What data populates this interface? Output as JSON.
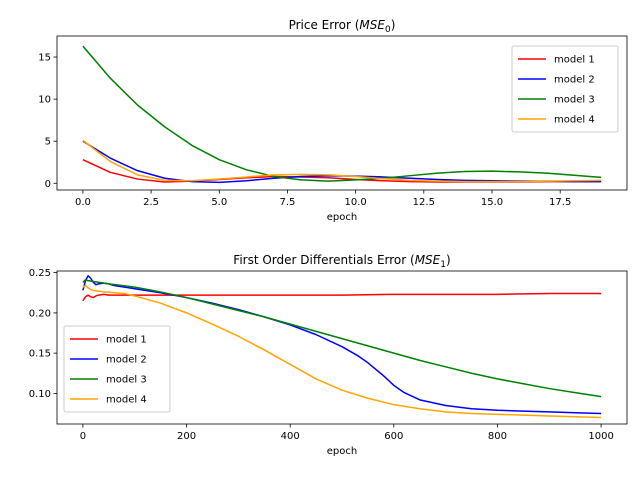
{
  "chart_data": [
    {
      "type": "line",
      "title": "Price Error (MSE0)",
      "title_base": "Price Error (",
      "title_sym": "MSE",
      "title_sub": "0",
      "title_end": ")",
      "xlabel": "epoch",
      "ylabel": "",
      "xlim": [
        -0.95,
        19.95
      ],
      "ylim": [
        -0.8,
        17.5
      ],
      "xticks": [
        0.0,
        2.5,
        5.0,
        7.5,
        10.0,
        12.5,
        15.0,
        17.5
      ],
      "xtick_labels": [
        "0.0",
        "2.5",
        "5.0",
        "7.5",
        "10.0",
        "12.5",
        "15.0",
        "17.5"
      ],
      "yticks": [
        0,
        5,
        10,
        15
      ],
      "ytick_labels": [
        "0",
        "5",
        "10",
        "15"
      ],
      "legend": "top-right",
      "grid": false,
      "series": [
        {
          "name": "model 1",
          "color": "#ff0000",
          "x": [
            0,
            1,
            2,
            3,
            4,
            5,
            6,
            7,
            8,
            9,
            10,
            11,
            12,
            13,
            14,
            15,
            16,
            17,
            18,
            19
          ],
          "y": [
            2.8,
            1.3,
            0.5,
            0.15,
            0.25,
            0.45,
            0.65,
            0.8,
            0.75,
            0.65,
            0.45,
            0.3,
            0.2,
            0.15,
            0.15,
            0.15,
            0.15,
            0.2,
            0.2,
            0.2
          ]
        },
        {
          "name": "model 2",
          "color": "#0000ff",
          "x": [
            0,
            1,
            2,
            3,
            4,
            5,
            6,
            7,
            8,
            9,
            10,
            11,
            12,
            13,
            14,
            15,
            16,
            17,
            18,
            19
          ],
          "y": [
            5.0,
            3.0,
            1.5,
            0.6,
            0.2,
            0.1,
            0.3,
            0.6,
            0.8,
            0.9,
            0.85,
            0.75,
            0.6,
            0.45,
            0.35,
            0.3,
            0.25,
            0.25,
            0.2,
            0.2
          ]
        },
        {
          "name": "model 3",
          "color": "#008000",
          "x": [
            0,
            1,
            2,
            3,
            4,
            5,
            6,
            7,
            8,
            9,
            10,
            11,
            12,
            13,
            14,
            15,
            16,
            17,
            18,
            19
          ],
          "y": [
            16.3,
            12.5,
            9.3,
            6.7,
            4.5,
            2.8,
            1.6,
            0.8,
            0.4,
            0.25,
            0.4,
            0.6,
            0.9,
            1.2,
            1.4,
            1.45,
            1.35,
            1.2,
            0.95,
            0.7
          ]
        },
        {
          "name": "model 4",
          "color": "#ffa500",
          "x": [
            0,
            1,
            2,
            3,
            4,
            5,
            6,
            7,
            8,
            9,
            10,
            11,
            12,
            13,
            14,
            15,
            16,
            17,
            18,
            19
          ],
          "y": [
            5.1,
            2.6,
            1.0,
            0.35,
            0.3,
            0.5,
            0.75,
            1.0,
            1.05,
            1.0,
            0.8,
            0.55,
            0.35,
            0.25,
            0.2,
            0.2,
            0.2,
            0.25,
            0.3,
            0.35
          ]
        }
      ]
    },
    {
      "type": "line",
      "title": "First Order Differentials Error (MSE1)",
      "title_base": "First Order Differentials Error (",
      "title_sym": "MSE",
      "title_sub": "1",
      "title_end": ")",
      "xlabel": "epoch",
      "ylabel": "",
      "xlim": [
        -50,
        1050
      ],
      "ylim": [
        0.062,
        0.252
      ],
      "xticks": [
        0,
        200,
        400,
        600,
        800,
        1000
      ],
      "xtick_labels": [
        "0",
        "200",
        "400",
        "600",
        "800",
        "1000"
      ],
      "yticks": [
        0.1,
        0.15,
        0.2,
        0.25
      ],
      "ytick_labels": [
        "0.10",
        "0.15",
        "0.20",
        "0.25"
      ],
      "legend": "lower-left",
      "grid": false,
      "series": [
        {
          "name": "model 1",
          "color": "#ff0000",
          "x": [
            0,
            5,
            10,
            15,
            20,
            25,
            30,
            40,
            50,
            60,
            80,
            100,
            150,
            200,
            300,
            400,
            500,
            600,
            700,
            800,
            900,
            1000
          ],
          "y": [
            0.215,
            0.22,
            0.222,
            0.22,
            0.219,
            0.221,
            0.222,
            0.223,
            0.222,
            0.222,
            0.222,
            0.222,
            0.222,
            0.222,
            0.222,
            0.222,
            0.222,
            0.223,
            0.223,
            0.223,
            0.224,
            0.224
          ]
        },
        {
          "name": "model 2",
          "color": "#0000ff",
          "x": [
            0,
            5,
            10,
            15,
            20,
            25,
            30,
            40,
            50,
            60,
            80,
            100,
            150,
            200,
            250,
            300,
            350,
            400,
            450,
            500,
            530,
            550,
            580,
            600,
            620,
            650,
            700,
            750,
            800,
            850,
            900,
            950,
            1000
          ],
          "y": [
            0.228,
            0.24,
            0.246,
            0.243,
            0.238,
            0.235,
            0.236,
            0.237,
            0.236,
            0.234,
            0.232,
            0.23,
            0.225,
            0.219,
            0.212,
            0.204,
            0.195,
            0.185,
            0.173,
            0.158,
            0.147,
            0.138,
            0.122,
            0.11,
            0.101,
            0.092,
            0.085,
            0.081,
            0.079,
            0.078,
            0.077,
            0.076,
            0.075
          ]
        },
        {
          "name": "model 3",
          "color": "#008000",
          "x": [
            0,
            5,
            10,
            20,
            30,
            50,
            100,
            150,
            200,
            250,
            300,
            350,
            400,
            450,
            500,
            550,
            600,
            650,
            700,
            750,
            800,
            850,
            900,
            950,
            1000
          ],
          "y": [
            0.238,
            0.241,
            0.24,
            0.239,
            0.238,
            0.236,
            0.232,
            0.226,
            0.219,
            0.211,
            0.203,
            0.195,
            0.186,
            0.177,
            0.168,
            0.159,
            0.15,
            0.141,
            0.133,
            0.125,
            0.118,
            0.112,
            0.106,
            0.101,
            0.096
          ]
        },
        {
          "name": "model 4",
          "color": "#ffa500",
          "x": [
            0,
            5,
            10,
            15,
            20,
            30,
            40,
            50,
            60,
            80,
            100,
            150,
            200,
            250,
            300,
            350,
            400,
            450,
            500,
            550,
            600,
            650,
            700,
            750,
            800,
            850,
            900,
            950,
            1000
          ],
          "y": [
            0.232,
            0.234,
            0.231,
            0.229,
            0.228,
            0.227,
            0.226,
            0.226,
            0.225,
            0.224,
            0.221,
            0.212,
            0.2,
            0.186,
            0.171,
            0.154,
            0.136,
            0.118,
            0.104,
            0.094,
            0.086,
            0.081,
            0.077,
            0.075,
            0.074,
            0.073,
            0.072,
            0.071,
            0.07
          ]
        }
      ]
    }
  ]
}
